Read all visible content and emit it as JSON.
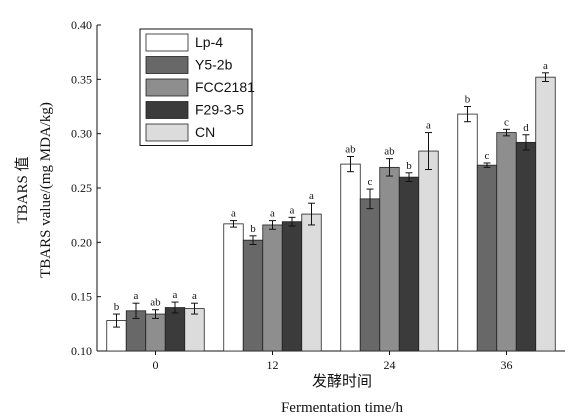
{
  "chart_data": {
    "type": "bar",
    "xlabel_cn": "发酵时间",
    "xlabel_en": "Fermentation time/h",
    "ylabel_cn": "TBARS 值",
    "ylabel_en": "TBARS value/(mg MDA/kg)",
    "ylim": [
      0.1,
      0.4
    ],
    "yticks": [
      "0.10",
      "0.15",
      "0.20",
      "0.25",
      "0.30",
      "0.35",
      "0.40"
    ],
    "categories": [
      "0",
      "12",
      "24",
      "36"
    ],
    "legend_position": "top-left",
    "grid": false,
    "series": [
      {
        "name": "Lp-4",
        "color": "#ffffff",
        "values": [
          0.128,
          0.217,
          0.272,
          0.318
        ],
        "errors": [
          0.006,
          0.003,
          0.007,
          0.007
        ],
        "labels": [
          "b",
          "a",
          "ab",
          "b"
        ]
      },
      {
        "name": "Y5-2b",
        "color": "#686868",
        "values": [
          0.137,
          0.202,
          0.24,
          0.271
        ],
        "errors": [
          0.007,
          0.004,
          0.009,
          0.002
        ],
        "labels": [
          "a",
          "b",
          "c",
          "c"
        ]
      },
      {
        "name": "FCC2181",
        "color": "#8e8e8e",
        "values": [
          0.134,
          0.216,
          0.269,
          0.301
        ],
        "errors": [
          0.004,
          0.004,
          0.008,
          0.003
        ],
        "labels": [
          "ab",
          "a",
          "ab",
          "c"
        ]
      },
      {
        "name": "F29-3-5",
        "color": "#3b3b3b",
        "values": [
          0.14,
          0.219,
          0.26,
          0.292
        ],
        "errors": [
          0.005,
          0.004,
          0.004,
          0.007
        ],
        "labels": [
          "a",
          "a",
          "b",
          "d"
        ]
      },
      {
        "name": "CN",
        "color": "#dcdcdc",
        "values": [
          0.139,
          0.226,
          0.284,
          0.352
        ],
        "errors": [
          0.005,
          0.01,
          0.017,
          0.004
        ],
        "labels": [
          "a",
          "a",
          "a",
          "a"
        ]
      }
    ]
  }
}
